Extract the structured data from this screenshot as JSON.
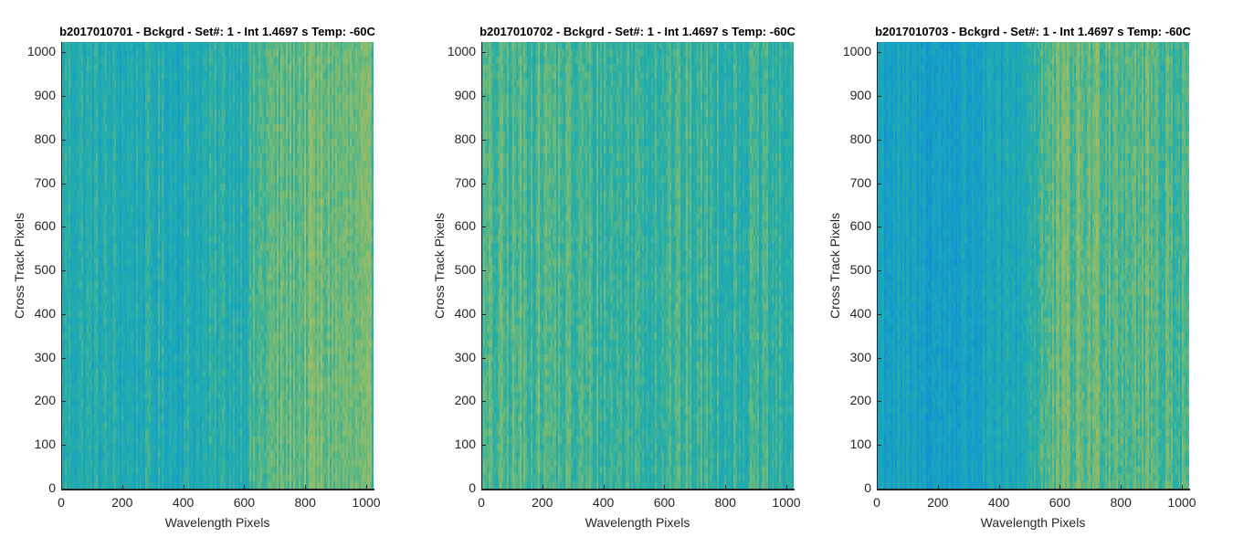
{
  "chart_data": [
    {
      "type": "heatmap",
      "title": "b2017010701 - Bckgrd - Set#: 1 - Int 1.4697 s Temp: -60C",
      "xlabel": "Wavelength Pixels",
      "ylabel": "Cross Track Pixels",
      "xlim": [
        0,
        1024
      ],
      "ylim": [
        0,
        1024
      ],
      "xticks": [
        "0",
        "200",
        "400",
        "600",
        "800",
        "1000"
      ],
      "yticks": [
        "0",
        "100",
        "200",
        "300",
        "400",
        "500",
        "600",
        "700",
        "800",
        "900",
        "1000"
      ],
      "colormap": "parula",
      "column_profile": {
        "x": [
          0,
          100,
          200,
          300,
          400,
          500,
          600,
          680,
          760,
          850,
          950,
          1024
        ],
        "level": [
          0.42,
          0.4,
          0.38,
          0.38,
          0.38,
          0.4,
          0.44,
          0.55,
          0.58,
          0.6,
          0.58,
          0.55
        ]
      }
    },
    {
      "type": "heatmap",
      "title": "b2017010702 - Bckgrd - Set#: 1 - Int 1.4697 s Temp: -60C",
      "xlabel": "Wavelength Pixels",
      "ylabel": "Cross Track Pixels",
      "xlim": [
        0,
        1024
      ],
      "ylim": [
        0,
        1024
      ],
      "xticks": [
        "0",
        "200",
        "400",
        "600",
        "800",
        "1000"
      ],
      "yticks": [
        "0",
        "100",
        "200",
        "300",
        "400",
        "500",
        "600",
        "700",
        "800",
        "900",
        "1000"
      ],
      "colormap": "parula",
      "column_profile": {
        "x": [
          0,
          100,
          200,
          300,
          400,
          500,
          600,
          700,
          800,
          900,
          1024
        ],
        "level": [
          0.5,
          0.52,
          0.54,
          0.5,
          0.48,
          0.48,
          0.5,
          0.48,
          0.46,
          0.45,
          0.44
        ]
      }
    },
    {
      "type": "heatmap",
      "title": "b2017010703 - Bckgrd - Set#: 1 - Int 1.4697 s Temp: -60C",
      "xlabel": "Wavelength Pixels",
      "ylabel": "Cross Track Pixels",
      "xlim": [
        0,
        1024
      ],
      "ylim": [
        0,
        1024
      ],
      "xticks": [
        "0",
        "200",
        "400",
        "600",
        "800",
        "1000"
      ],
      "yticks": [
        "0",
        "100",
        "200",
        "300",
        "400",
        "500",
        "600",
        "700",
        "800",
        "900",
        "1000"
      ],
      "colormap": "parula",
      "column_profile": {
        "x": [
          0,
          100,
          200,
          300,
          400,
          470,
          530,
          600,
          700,
          800,
          900,
          1024
        ],
        "level": [
          0.3,
          0.26,
          0.25,
          0.27,
          0.3,
          0.36,
          0.5,
          0.56,
          0.58,
          0.58,
          0.55,
          0.52
        ]
      }
    }
  ]
}
